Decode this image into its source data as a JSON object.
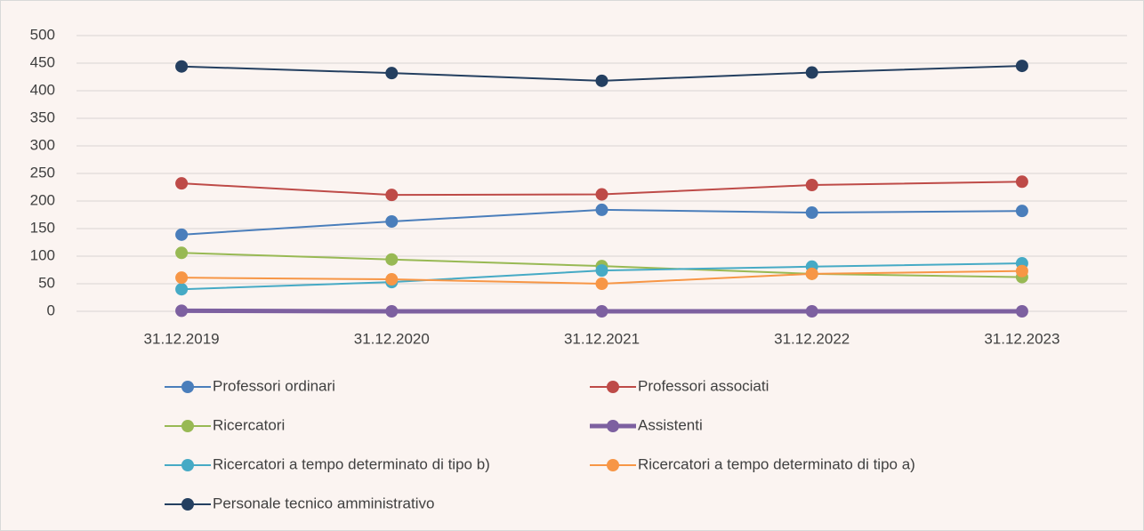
{
  "chart_data": {
    "type": "line",
    "categories": [
      "31.12.2019",
      "31.12.2020",
      "31.12.2021",
      "31.12.2022",
      "31.12.2023"
    ],
    "series": [
      {
        "name": "Professori ordinari",
        "color": "#4a7ebb",
        "values": [
          139,
          163,
          184,
          179,
          182
        ]
      },
      {
        "name": "Professori associati",
        "color": "#be4b48",
        "values": [
          232,
          211,
          212,
          229,
          235
        ]
      },
      {
        "name": "Ricercatori",
        "color": "#98b954",
        "values": [
          106,
          94,
          82,
          68,
          62
        ]
      },
      {
        "name": "Assistenti",
        "color": "#7d60a0",
        "values": [
          1,
          0,
          0,
          0,
          0
        ]
      },
      {
        "name": "Ricercatori a tempo determinato di tipo b)",
        "color": "#46aac5",
        "values": [
          40,
          53,
          74,
          81,
          87
        ]
      },
      {
        "name": "Ricercatori a tempo determinato di tipo a)",
        "color": "#f79646",
        "values": [
          61,
          58,
          50,
          68,
          73
        ]
      },
      {
        "name": "Personale tecnico amministrativo",
        "color": "#243f60",
        "values": [
          444,
          432,
          418,
          433,
          445
        ]
      }
    ],
    "ylim": [
      0,
      500
    ],
    "yticks": [
      0,
      50,
      100,
      150,
      200,
      250,
      300,
      350,
      400,
      450,
      500
    ],
    "grid": true
  }
}
